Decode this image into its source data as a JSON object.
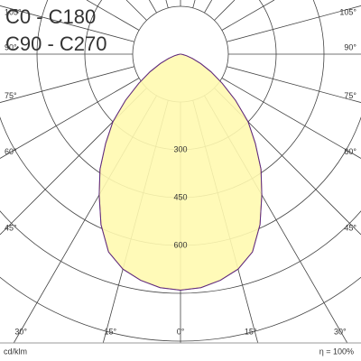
{
  "chart_data": {
    "type": "polar",
    "unit_label": "cd/klm",
    "efficiency_label": "η = 100%",
    "x": [
      -90,
      -85,
      -80,
      -75,
      -70,
      -65,
      -60,
      -55,
      -50,
      -45,
      -40,
      -35,
      -30,
      -25,
      -20,
      -15,
      -10,
      -5,
      0,
      5,
      10,
      15,
      20,
      25,
      30,
      35,
      40,
      45,
      50,
      55,
      60,
      65,
      70,
      75,
      80,
      85,
      90
    ],
    "series": [
      {
        "name": "C0 - C180",
        "color": "#d00000",
        "values": [
          0,
          2,
          8,
          20,
          40,
          70,
          110,
          160,
          225,
          300,
          365,
          440,
          510,
          590,
          660,
          698,
          720,
          735,
          740,
          735,
          720,
          698,
          660,
          590,
          510,
          440,
          365,
          300,
          225,
          160,
          110,
          70,
          40,
          20,
          8,
          2,
          0
        ]
      },
      {
        "name": "C90 - C270",
        "color": "#2020a0",
        "values": [
          0,
          2,
          8,
          20,
          40,
          70,
          110,
          160,
          225,
          300,
          365,
          440,
          510,
          590,
          660,
          698,
          720,
          735,
          740,
          735,
          720,
          698,
          660,
          590,
          510,
          440,
          365,
          300,
          225,
          160,
          110,
          70,
          40,
          20,
          8,
          2,
          0
        ]
      }
    ],
    "fill_color": "#fffab0",
    "rlim": [
      0,
      900
    ],
    "rticks": [
      300,
      450,
      600
    ],
    "angle_ticks": [
      {
        "value": 0,
        "label": "0°"
      },
      {
        "value": 15,
        "label": "15°"
      },
      {
        "value": 30,
        "label": "30°"
      },
      {
        "value": 45,
        "label": "45°"
      },
      {
        "value": 60,
        "label": "60°"
      },
      {
        "value": 75,
        "label": "75°"
      },
      {
        "value": 90,
        "label": "90°"
      },
      {
        "value": 105,
        "label": "105°"
      }
    ]
  }
}
